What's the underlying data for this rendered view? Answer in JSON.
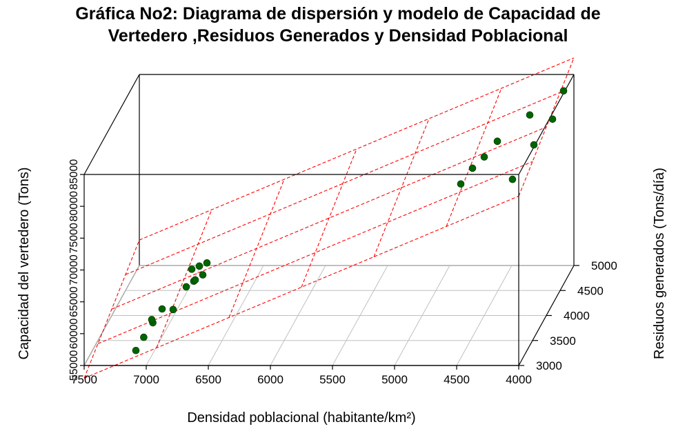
{
  "chart_data": {
    "type": "scatter3d",
    "title": [
      "Gráfica No2: Diagrama de dispersión y modelo de Capacidad de",
      "Vertedero ,Residuos Generados y Densidad Poblacional"
    ],
    "xlabel": "Densidad poblacional (habitante/km²)",
    "ylabel": "Residuos generados (Tons/día)",
    "zlabel": "Capacidad del vertedero (Tons)",
    "xlim": [
      7500,
      4000
    ],
    "ylim": [
      3000,
      5000
    ],
    "zlim": [
      55000,
      85000
    ],
    "x_ticks": [
      "7500",
      "7000",
      "6500",
      "6000",
      "5500",
      "5000",
      "4500",
      "4000"
    ],
    "y_ticks": [
      "3000",
      "3500",
      "4000",
      "4500",
      "5000"
    ],
    "z_ticks": [
      "55000",
      "60000",
      "65000",
      "70000",
      "75000",
      "80000",
      "85000"
    ],
    "point_color": "#006400",
    "plane_color": "#ff0000",
    "grid": true,
    "points": [
      {
        "x": 7150,
        "y": 3300,
        "z": 55000
      },
      {
        "x": 7120,
        "y": 3450,
        "z": 55900
      },
      {
        "x": 7080,
        "y": 3600,
        "z": 57000
      },
      {
        "x": 7100,
        "y": 3650,
        "z": 57100
      },
      {
        "x": 7050,
        "y": 3800,
        "z": 57600
      },
      {
        "x": 6950,
        "y": 3750,
        "z": 57900
      },
      {
        "x": 6900,
        "y": 4000,
        "z": 59500
      },
      {
        "x": 6850,
        "y": 4050,
        "z": 60000
      },
      {
        "x": 6850,
        "y": 4100,
        "z": 59800
      },
      {
        "x": 6800,
        "y": 4150,
        "z": 60200
      },
      {
        "x": 6900,
        "y": 4200,
        "z": 60700
      },
      {
        "x": 6850,
        "y": 4250,
        "z": 60800
      },
      {
        "x": 6800,
        "y": 4300,
        "z": 60900
      },
      {
        "x": 4600,
        "y": 3600,
        "z": 78800
      },
      {
        "x": 4550,
        "y": 3800,
        "z": 79700
      },
      {
        "x": 4500,
        "y": 4000,
        "z": 79900
      },
      {
        "x": 4450,
        "y": 4250,
        "z": 80400
      },
      {
        "x": 4300,
        "y": 4750,
        "z": 80600
      },
      {
        "x": 4150,
        "y": 3450,
        "z": 80700
      },
      {
        "x": 4100,
        "y": 4000,
        "z": 81800
      },
      {
        "x": 4050,
        "y": 4450,
        "z": 82300
      },
      {
        "x": 4050,
        "y": 4850,
        "z": 83600
      }
    ],
    "plane_model": {
      "z_at_x7500_y3000": 53000,
      "z_at_x4000_y3000": 81600,
      "z_at_x7500_y5000": 59000
    }
  }
}
